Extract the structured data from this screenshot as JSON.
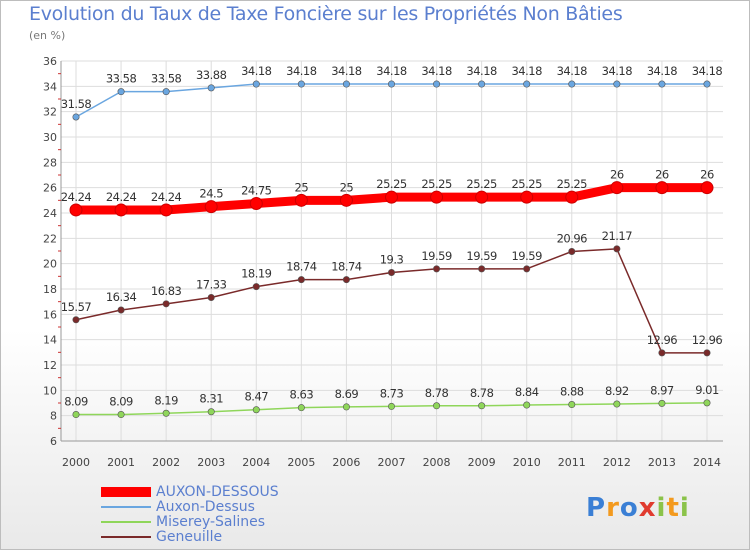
{
  "page": {
    "title": "Evolution du Taux de Taxe Foncière sur les Propriétés Non Bâties",
    "unit": "(en %)"
  },
  "logo": {
    "text": "Proxiti"
  },
  "chart_data": {
    "type": "line",
    "title": "Evolution du Taux de Taxe Foncière sur les Propriétés Non Bâties",
    "ylabel": "(en %)",
    "xlabel": "",
    "ylim": [
      6,
      36
    ],
    "yticks": [
      6,
      8,
      10,
      12,
      14,
      16,
      18,
      20,
      22,
      24,
      26,
      28,
      30,
      32,
      34,
      36
    ],
    "grid": true,
    "legend_position": "bottom-left",
    "categories": [
      "2000",
      "2001",
      "2002",
      "2003",
      "2004",
      "2005",
      "2006",
      "2007",
      "2008",
      "2009",
      "2010",
      "2011",
      "2012",
      "2013",
      "2014"
    ],
    "series": [
      {
        "name": "AUXON-DESSOUS",
        "color": "#ff0000",
        "values": [
          24.24,
          24.24,
          24.24,
          24.5,
          24.75,
          25,
          25,
          25.25,
          25.25,
          25.25,
          25.25,
          25.25,
          26,
          26,
          26
        ],
        "labels": [
          "24.24",
          "24.24",
          "24.24",
          "24.5",
          "24.75",
          "25",
          "25",
          "25.25",
          "25.25",
          "25.25",
          "25.25",
          "25.25",
          "26",
          "26",
          "26"
        ]
      },
      {
        "name": "Auxon-Dessus",
        "color": "#6aa6e0",
        "values": [
          31.58,
          33.58,
          33.58,
          33.88,
          34.18,
          34.18,
          34.18,
          34.18,
          34.18,
          34.18,
          34.18,
          34.18,
          34.18,
          34.18,
          34.18
        ],
        "labels": [
          "31.58",
          "33.58",
          "33.58",
          "33.88",
          "34.18",
          "34.18",
          "34.18",
          "34.18",
          "34.18",
          "34.18",
          "34.18",
          "34.18",
          "34.18",
          "34.18",
          "34.18"
        ]
      },
      {
        "name": "Miserey-Salines",
        "color": "#8fd65a",
        "values": [
          8.09,
          8.09,
          8.19,
          8.31,
          8.47,
          8.63,
          8.69,
          8.73,
          8.78,
          8.78,
          8.84,
          8.88,
          8.92,
          8.97,
          9.01
        ],
        "labels": [
          "8.09",
          "8.09",
          "8.19",
          "8.31",
          "8.47",
          "8.63",
          "8.69",
          "8.73",
          "8.78",
          "8.78",
          "8.84",
          "8.88",
          "8.92",
          "8.97",
          "9.01"
        ]
      },
      {
        "name": "Geneuille",
        "color": "#7a2a2a",
        "values": [
          15.57,
          16.34,
          16.83,
          17.33,
          18.19,
          18.74,
          18.74,
          19.3,
          19.59,
          19.59,
          19.59,
          20.96,
          21.17,
          12.96,
          12.96
        ],
        "labels": [
          "15.57",
          "16.34",
          "16.83",
          "17.33",
          "18.19",
          "18.74",
          "18.74",
          "19.3",
          "19.59",
          "19.59",
          "19.59",
          "20.96",
          "21.17",
          "12.96",
          "12.96"
        ]
      }
    ]
  }
}
